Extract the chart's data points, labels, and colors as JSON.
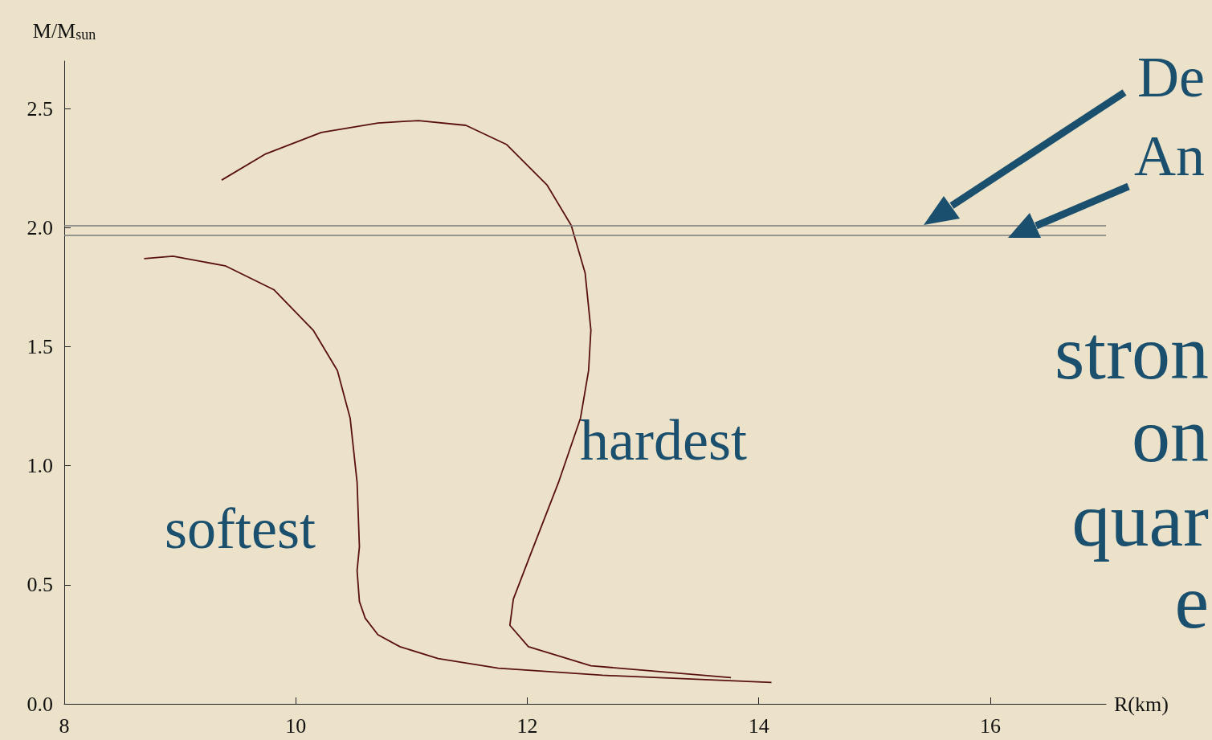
{
  "chart_data": {
    "type": "line",
    "xlabel": "R(km)",
    "ylabel": "M/M$_{sun}$",
    "xlim": [
      8,
      17
    ],
    "xticks": [
      8,
      10,
      12,
      14,
      16
    ],
    "ylim": [
      0,
      2.7
    ],
    "yticks": [
      {
        "value": 0,
        "label": "0.0"
      },
      {
        "value": 0.5,
        "label": "0.5"
      },
      {
        "value": 1,
        "label": "1.0"
      },
      {
        "value": 1.5,
        "label": "1.5"
      },
      {
        "value": 2,
        "label": "2.0"
      },
      {
        "value": 2.5,
        "label": "2.5"
      }
    ],
    "grid": false,
    "marker": "none",
    "line_style": "solid",
    "series": [
      {
        "color": "#5a1010",
        "x": [
          8.69,
          8.94,
          9.39,
          9.81,
          10.15,
          10.36,
          10.47,
          10.53,
          10.55,
          10.53,
          10.55,
          10.6,
          10.71,
          10.9,
          11.23,
          11.75,
          12.65,
          14.11
        ],
        "values": [
          1.87,
          1.88,
          1.84,
          1.74,
          1.57,
          1.4,
          1.2,
          0.93,
          0.66,
          0.56,
          0.43,
          0.36,
          0.29,
          0.24,
          0.19,
          0.15,
          0.12,
          0.09
        ]
      },
      {
        "color": "#5a1010",
        "x": [
          9.36,
          9.74,
          10.22,
          10.71,
          11.06,
          11.47,
          11.82,
          12.17,
          12.38,
          12.5,
          12.55,
          12.53,
          12.46,
          12.27,
          12.03,
          11.88,
          11.85,
          12.01,
          12.55,
          13.76
        ],
        "values": [
          2.2,
          2.31,
          2.4,
          2.44,
          2.45,
          2.43,
          2.35,
          2.18,
          2.01,
          1.81,
          1.57,
          1.4,
          1.2,
          0.93,
          0.63,
          0.44,
          0.33,
          0.24,
          0.16,
          0.11
        ]
      }
    ],
    "ref_lines": [
      {
        "axis": "y",
        "value": 2.01,
        "color": "#7a7a7a"
      },
      {
        "axis": "y",
        "value": 1.97,
        "color": "#7a7a7a"
      }
    ],
    "annotations": [
      "softest",
      "hardest",
      "De",
      "An",
      "stron",
      "on",
      "quar",
      "e"
    ]
  }
}
